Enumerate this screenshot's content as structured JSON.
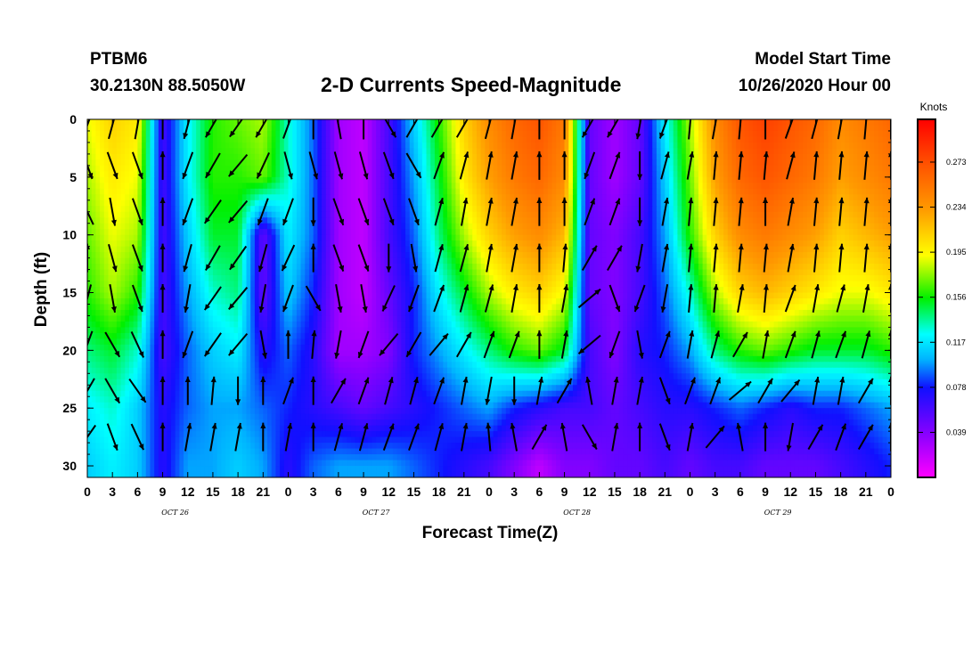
{
  "header": {
    "station_id": "PTBM6",
    "coords": "30.2130N 88.5050W",
    "title": "2-D Currents Speed-Magnitude",
    "start_label": "Model Start Time",
    "start_value": "10/26/2020 Hour 00"
  },
  "chart_data": {
    "type": "heatmap",
    "title": "2-D Currents Speed-Magnitude",
    "xlabel": "Forecast Time(Z)",
    "ylabel": "Depth (ft)",
    "x_range_hours": [
      0,
      96
    ],
    "y_range_ft": [
      0,
      31
    ],
    "x_ticks": [
      "0",
      "3",
      "6",
      "9",
      "12",
      "15",
      "18",
      "21",
      "0",
      "3",
      "6",
      "9",
      "12",
      "15",
      "18",
      "21",
      "0",
      "3",
      "6",
      "9",
      "12",
      "15",
      "18",
      "21",
      "0",
      "3",
      "6",
      "9",
      "12",
      "15",
      "18",
      "21",
      "0"
    ],
    "x_tick_step_hours": 3,
    "day_labels": [
      {
        "text": "OCT 26",
        "hour": 10.5
      },
      {
        "text": "OCT 27",
        "hour": 34.5
      },
      {
        "text": "OCT 28",
        "hour": 58.5
      },
      {
        "text": "OCT 29",
        "hour": 82.5
      }
    ],
    "y_ticks": [
      0,
      5,
      10,
      15,
      20,
      25,
      30
    ],
    "colorbar": {
      "unit": "Knots",
      "min": 0.0,
      "max": 0.31,
      "ticks": [
        "0.039",
        "0.078",
        "0.117",
        "0.156",
        "0.195",
        "0.234",
        "0.273"
      ]
    },
    "arrow_depths_ft": [
      0.5,
      4.0,
      8.0,
      12.0,
      15.5,
      19.5,
      23.5,
      27.5
    ],
    "arrow_hours": [
      0,
      3,
      6,
      9,
      12,
      15,
      18,
      21,
      24,
      27,
      30,
      33,
      36,
      39,
      42,
      45,
      48,
      51,
      54,
      57,
      60,
      63,
      66,
      69,
      72,
      75,
      78,
      81,
      84,
      87,
      90,
      93,
      96
    ],
    "arrow_directions_deg": [
      [
        20,
        160,
        335,
        0,
        195,
        200,
        210,
        215
      ],
      [
        15,
        160,
        170,
        165,
        170,
        150,
        150,
        160
      ],
      [
        10,
        160,
        160,
        160,
        160,
        155,
        145,
        155
      ],
      [
        0,
        0,
        0,
        0,
        0,
        0,
        0,
        0
      ],
      [
        195,
        200,
        200,
        195,
        190,
        200,
        0,
        10
      ],
      [
        210,
        210,
        215,
        210,
        215,
        215,
        5,
        10
      ],
      [
        215,
        220,
        220,
        215,
        220,
        220,
        180,
        10
      ],
      [
        210,
        205,
        200,
        195,
        190,
        170,
        0,
        0
      ],
      [
        20,
        165,
        200,
        205,
        200,
        0,
        20,
        10
      ],
      [
        0,
        165,
        180,
        0,
        150,
        5,
        0,
        0
      ],
      [
        350,
        165,
        160,
        160,
        170,
        190,
        30,
        15
      ],
      [
        0,
        165,
        160,
        160,
        170,
        200,
        20,
        15
      ],
      [
        150,
        160,
        160,
        180,
        205,
        220,
        15,
        20
      ],
      [
        30,
        150,
        160,
        170,
        200,
        210,
        15,
        20
      ],
      [
        30,
        20,
        15,
        15,
        20,
        40,
        20,
        15
      ],
      [
        30,
        15,
        10,
        15,
        15,
        30,
        10,
        10
      ],
      [
        15,
        10,
        10,
        10,
        15,
        20,
        190,
        355
      ],
      [
        10,
        10,
        10,
        10,
        10,
        20,
        180,
        350
      ],
      [
        0,
        0,
        0,
        0,
        0,
        0,
        10,
        30
      ],
      [
        0,
        0,
        0,
        5,
        10,
        10,
        30,
        350
      ],
      [
        210,
        200,
        20,
        30,
        50,
        230,
        350,
        150
      ],
      [
        210,
        20,
        20,
        30,
        160,
        200,
        10,
        10
      ],
      [
        190,
        180,
        180,
        190,
        200,
        170,
        10,
        0
      ],
      [
        200,
        15,
        10,
        10,
        190,
        20,
        160,
        160
      ],
      [
        5,
        10,
        5,
        5,
        5,
        10,
        20,
        10
      ],
      [
        10,
        5,
        5,
        5,
        5,
        15,
        20,
        40
      ],
      [
        5,
        5,
        5,
        5,
        10,
        30,
        50,
        350
      ],
      [
        0,
        5,
        0,
        5,
        5,
        10,
        30,
        0
      ],
      [
        20,
        15,
        10,
        10,
        20,
        20,
        40,
        190
      ],
      [
        15,
        5,
        5,
        5,
        10,
        15,
        10,
        30
      ],
      [
        10,
        5,
        5,
        5,
        15,
        20,
        10,
        20
      ],
      [
        5,
        5,
        5,
        5,
        10,
        15,
        30,
        30
      ],
      [
        0,
        0,
        0,
        0,
        0,
        0,
        0,
        0
      ]
    ],
    "speed_grid_knots": {
      "rows_depth_ft": [
        0,
        5,
        10,
        15,
        20,
        25,
        30
      ],
      "columns_hour": [
        0,
        3,
        6,
        9,
        12,
        15,
        18,
        21,
        24,
        27,
        30,
        33,
        36,
        39,
        42,
        45,
        48,
        51,
        54,
        57,
        60,
        63,
        66,
        69,
        72,
        75,
        78,
        81,
        84,
        87,
        90,
        93,
        96
      ],
      "values": [
        [
          0.19,
          0.21,
          0.2,
          0.06,
          0.12,
          0.16,
          0.17,
          0.18,
          0.13,
          0.09,
          0.03,
          0.02,
          0.06,
          0.11,
          0.16,
          0.21,
          0.24,
          0.26,
          0.27,
          0.25,
          0.05,
          0.03,
          0.05,
          0.12,
          0.18,
          0.24,
          0.27,
          0.28,
          0.27,
          0.26,
          0.24,
          0.25,
          0.26
        ],
        [
          0.18,
          0.2,
          0.19,
          0.06,
          0.12,
          0.16,
          0.16,
          0.17,
          0.13,
          0.09,
          0.03,
          0.02,
          0.06,
          0.1,
          0.15,
          0.2,
          0.23,
          0.25,
          0.26,
          0.24,
          0.05,
          0.03,
          0.05,
          0.11,
          0.17,
          0.23,
          0.26,
          0.27,
          0.26,
          0.25,
          0.23,
          0.24,
          0.25
        ],
        [
          0.17,
          0.19,
          0.18,
          0.06,
          0.11,
          0.15,
          0.15,
          0.05,
          0.12,
          0.09,
          0.03,
          0.02,
          0.06,
          0.09,
          0.14,
          0.18,
          0.21,
          0.23,
          0.24,
          0.22,
          0.05,
          0.04,
          0.06,
          0.1,
          0.16,
          0.21,
          0.24,
          0.25,
          0.24,
          0.23,
          0.21,
          0.22,
          0.23
        ],
        [
          0.16,
          0.18,
          0.16,
          0.06,
          0.1,
          0.13,
          0.14,
          0.05,
          0.11,
          0.08,
          0.03,
          0.02,
          0.05,
          0.08,
          0.12,
          0.15,
          0.18,
          0.2,
          0.21,
          0.19,
          0.05,
          0.04,
          0.06,
          0.09,
          0.13,
          0.18,
          0.21,
          0.22,
          0.21,
          0.2,
          0.19,
          0.19,
          0.2
        ],
        [
          0.14,
          0.15,
          0.13,
          0.06,
          0.09,
          0.11,
          0.12,
          0.07,
          0.09,
          0.07,
          0.03,
          0.03,
          0.04,
          0.08,
          0.1,
          0.12,
          0.14,
          0.16,
          0.17,
          0.15,
          0.06,
          0.04,
          0.07,
          0.08,
          0.1,
          0.14,
          0.16,
          0.17,
          0.16,
          0.15,
          0.15,
          0.15,
          0.16
        ],
        [
          0.12,
          0.13,
          0.11,
          0.07,
          0.09,
          0.1,
          0.1,
          0.09,
          0.08,
          0.07,
          0.06,
          0.05,
          0.06,
          0.07,
          0.08,
          0.09,
          0.1,
          0.08,
          0.07,
          0.06,
          0.06,
          0.05,
          0.06,
          0.07,
          0.07,
          0.08,
          0.09,
          0.08,
          0.07,
          0.08,
          0.08,
          0.09,
          0.1
        ],
        [
          0.11,
          0.12,
          0.11,
          0.07,
          0.1,
          0.1,
          0.11,
          0.1,
          0.07,
          0.09,
          0.1,
          0.1,
          0.1,
          0.09,
          0.08,
          0.07,
          0.06,
          0.04,
          0.02,
          0.04,
          0.04,
          0.05,
          0.05,
          0.06,
          0.05,
          0.06,
          0.06,
          0.05,
          0.05,
          0.05,
          0.06,
          0.07,
          0.08
        ]
      ]
    }
  }
}
